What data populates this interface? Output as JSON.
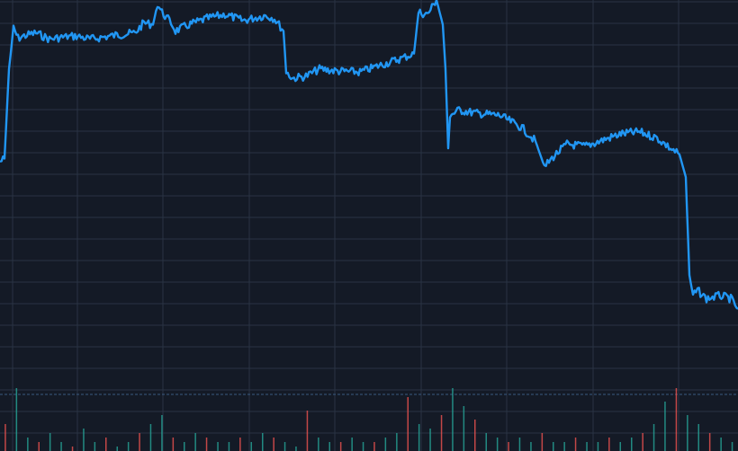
{
  "chart_data": {
    "type": "line",
    "title": "",
    "xlabel": "",
    "ylabel": "",
    "grid": true,
    "corner_label": "",
    "x": [
      0,
      5,
      10,
      15,
      20,
      30,
      40,
      55,
      70,
      85,
      100,
      115,
      130,
      150,
      160,
      170,
      175,
      180,
      190,
      195,
      210,
      230,
      250,
      270,
      295,
      305,
      315,
      318,
      325,
      340,
      355,
      375,
      400,
      420,
      445,
      460,
      465,
      475,
      485,
      492,
      495,
      498,
      500,
      510,
      530,
      555,
      580,
      595,
      605,
      615,
      630,
      650,
      670,
      690,
      710,
      730,
      745,
      755,
      762,
      766,
      770,
      775,
      785,
      800,
      812,
      820
    ],
    "series": [
      {
        "name": "",
        "color": "#2196f3",
        "values": [
          1455,
          1458,
          1545,
          1585,
          1575,
          1578,
          1580,
          1574,
          1576,
          1577,
          1574,
          1576,
          1578,
          1580,
          1590,
          1588,
          1608,
          1600,
          1590,
          1582,
          1588,
          1594,
          1598,
          1592,
          1597,
          1594,
          1582,
          1542,
          1536,
          1538,
          1545,
          1543,
          1542,
          1548,
          1555,
          1560,
          1600,
          1598,
          1612,
          1588,
          1545,
          1468,
          1500,
          1505,
          1502,
          1500,
          1488,
          1475,
          1450,
          1460,
          1472,
          1470,
          1476,
          1482,
          1484,
          1478,
          1468,
          1462,
          1440,
          1345,
          1325,
          1330,
          1322,
          1325,
          1322,
          1312
        ]
      }
    ],
    "ylim": [
      1250,
      1612
    ],
    "volume": {
      "values": [
        6,
        14,
        3,
        2,
        4,
        2,
        1,
        5,
        2,
        3,
        1,
        2,
        4,
        6,
        8,
        3,
        2,
        4,
        3,
        2,
        2,
        3,
        2,
        4,
        3,
        2,
        1,
        9,
        3,
        2,
        2,
        3,
        2,
        2,
        3,
        4,
        12,
        6,
        5,
        8,
        14,
        10,
        7,
        4,
        3,
        2,
        3,
        2,
        4,
        2,
        2,
        3,
        2,
        2,
        3,
        2,
        3,
        4,
        6,
        11,
        14,
        8,
        6,
        4,
        3,
        2
      ],
      "colors": [
        "#26a69a",
        "#ef5350"
      ]
    }
  }
}
